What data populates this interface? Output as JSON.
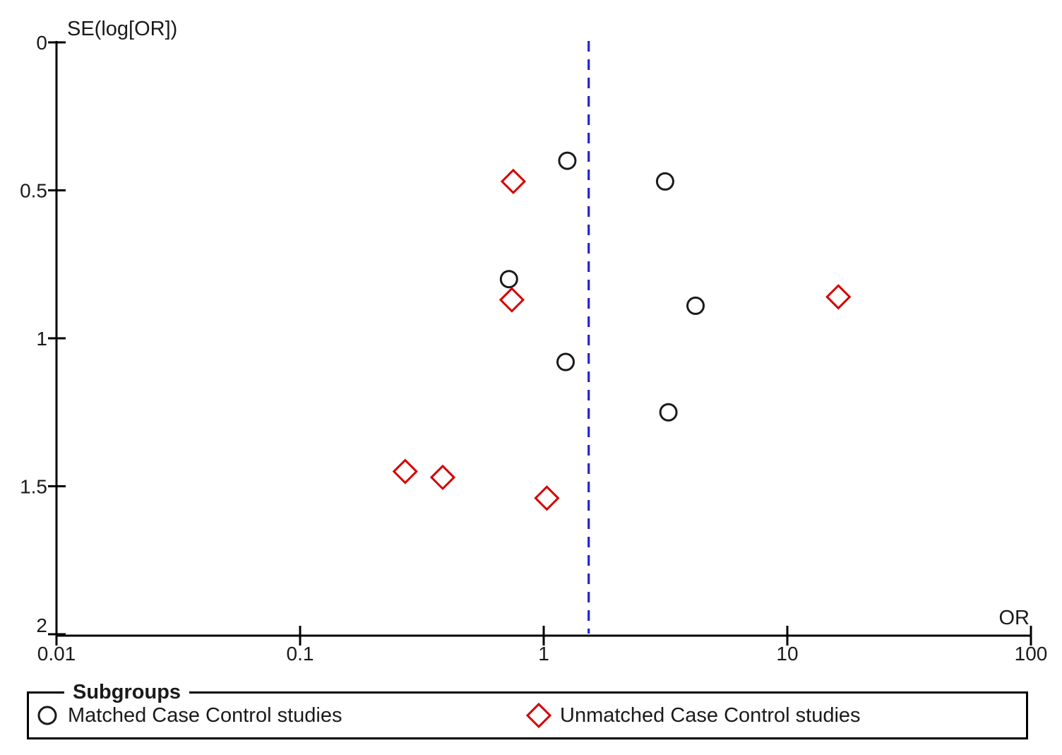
{
  "chart_data": {
    "type": "scatter",
    "subtype": "funnel-plot",
    "title": "",
    "xlabel": "OR",
    "ylabel": "SE(log[OR])",
    "x_scale": "log10",
    "xlim": [
      0.01,
      100
    ],
    "ylim": [
      0,
      2
    ],
    "y_inverted": true,
    "grid": false,
    "x_ticks": [
      0.01,
      0.1,
      1,
      10,
      100
    ],
    "x_tick_labels": [
      "0.01",
      "0.1",
      "1",
      "10",
      "100"
    ],
    "y_ticks": [
      0,
      0.5,
      1,
      1.5,
      2
    ],
    "y_tick_labels": [
      "0",
      "0.5",
      "1",
      "1.5",
      "2"
    ],
    "reference_line": {
      "orientation": "vertical",
      "x_value": 1.53,
      "style": "dashed",
      "color": "#2222cf"
    },
    "series": [
      {
        "name": "Matched Case Control studies",
        "marker": "circle",
        "color": "#1a1a1a",
        "points": [
          {
            "or": 1.25,
            "se": 0.4
          },
          {
            "or": 3.15,
            "se": 0.47
          },
          {
            "or": 0.72,
            "se": 0.8
          },
          {
            "or": 4.2,
            "se": 0.89
          },
          {
            "or": 1.23,
            "se": 1.08
          },
          {
            "or": 3.25,
            "se": 1.25
          }
        ]
      },
      {
        "name": "Unmatched Case Control studies",
        "marker": "diamond",
        "color": "#d40000",
        "points": [
          {
            "or": 0.75,
            "se": 0.47
          },
          {
            "or": 0.74,
            "se": 0.87
          },
          {
            "or": 16.2,
            "se": 0.86
          },
          {
            "or": 0.27,
            "se": 1.45
          },
          {
            "or": 0.385,
            "se": 1.47
          },
          {
            "or": 1.03,
            "se": 1.54
          }
        ]
      }
    ],
    "legend": {
      "title": "Subgroups",
      "position": "bottom",
      "items": [
        {
          "label": "Matched Case Control studies",
          "marker": "circle",
          "color": "#1a1a1a"
        },
        {
          "label": "Unmatched Case Control studies",
          "marker": "diamond",
          "color": "#d40000"
        }
      ]
    },
    "colors": {
      "axis": "#000000",
      "text": "#1a1a1a",
      "matched_marker": "#1a1a1a",
      "unmatched_marker": "#d40000",
      "reference_line": "#2222cf",
      "background": "#ffffff"
    }
  }
}
